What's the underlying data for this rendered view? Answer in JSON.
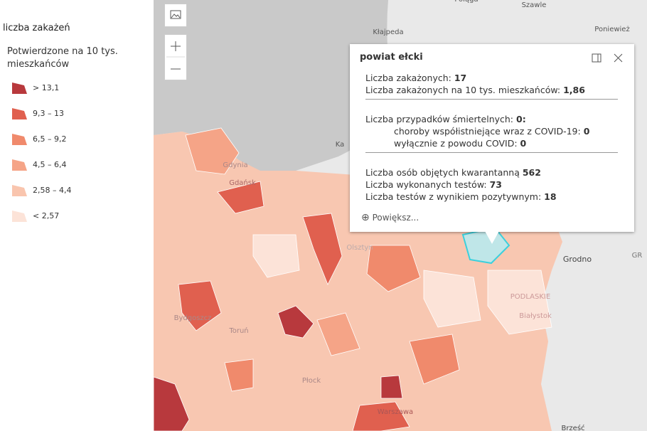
{
  "legend": {
    "title": "liczba zakażeń",
    "subtitle": "Potwierdzone na 10 tys. mieszkańców",
    "items": [
      {
        "label": "> 13,1",
        "color": "#b8393d"
      },
      {
        "label": "9,3 – 13",
        "color": "#e0604f"
      },
      {
        "label": "6,5 – 9,2",
        "color": "#f08a6c"
      },
      {
        "label": "4,5 – 6,4",
        "color": "#f5a487"
      },
      {
        "label": "2,58 – 4,4",
        "color": "#f9c5ae"
      },
      {
        "label": "< 2,57",
        "color": "#fce3d8"
      }
    ]
  },
  "popup": {
    "title": "powiat ełcki",
    "groups": [
      [
        {
          "label": "Liczba zakażonych: ",
          "value": "17"
        },
        {
          "label": "Liczba zakażonych na 10 tys. mieszkańców: ",
          "value": "1,86"
        }
      ],
      [
        {
          "label": "Liczba przypadków śmiertelnych: ",
          "value": "0:"
        },
        {
          "label": "choroby współistniejące wraz z COVID-19: ",
          "value": "0",
          "indent": true
        },
        {
          "label": "wyłącznie z powodu COVID: ",
          "value": "0",
          "indent": true
        }
      ],
      [
        {
          "label": "Liczba osób objętych kwarantanną ",
          "value": "562"
        },
        {
          "label": "Liczba wykonanych testów: ",
          "value": "73"
        },
        {
          "label": "Liczba testów z wynikiem pozytywnym: ",
          "value": "18"
        }
      ]
    ],
    "zoom": "Powiększ..."
  },
  "map_labels": [
    "Kłajpeda",
    "Szawle",
    "Poniewież",
    "Połąga",
    "Grodno",
    "Białystok",
    "Gdynia",
    "Gdańsk",
    "Olsztyn",
    "Toruń",
    "Bydgoszcz",
    "Płock",
    "Warszawa",
    "Brześć",
    "Ka",
    "PODLASKIE",
    "GR"
  ]
}
